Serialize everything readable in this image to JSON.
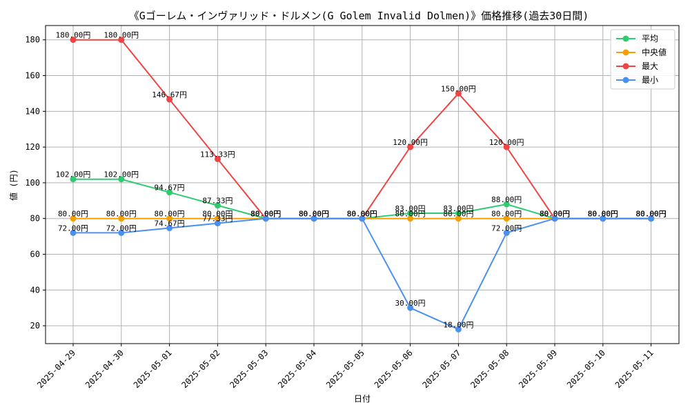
{
  "chart_data": {
    "type": "line",
    "title": "《Gゴーレム・インヴァリッド・ドルメン(G Golem Invalid Dolmen)》価格推移(過去30日間)",
    "xlabel": "日付",
    "ylabel": "値 (円)",
    "ylim": [
      10,
      188
    ],
    "yticks": [
      20,
      40,
      60,
      80,
      100,
      120,
      140,
      160,
      180
    ],
    "grid": true,
    "legend_position": "top-right",
    "x": [
      "2025-04-29",
      "2025-04-30",
      "2025-05-01",
      "2025-05-02",
      "2025-05-03",
      "2025-05-04",
      "2025-05-05",
      "2025-05-06",
      "2025-05-07",
      "2025-05-08",
      "2025-05-09",
      "2025-05-10",
      "2025-05-11"
    ],
    "series": [
      {
        "name": "平均",
        "color": "#2ecc71",
        "values": [
          102.0,
          102.0,
          94.67,
          87.33,
          80.0,
          80.0,
          80.0,
          83.0,
          83.0,
          88.0,
          80.0,
          80.0,
          80.0
        ]
      },
      {
        "name": "中央値",
        "color": "#f5a000",
        "values": [
          80.0,
          80.0,
          80.0,
          80.0,
          80.0,
          80.0,
          80.0,
          80.0,
          80.0,
          80.0,
          80.0,
          80.0,
          80.0
        ]
      },
      {
        "name": "最大",
        "color": "#ef4444",
        "values": [
          180.0,
          180.0,
          146.67,
          113.33,
          80.0,
          80.0,
          80.0,
          120.0,
          150.0,
          120.0,
          80.0,
          80.0,
          80.0
        ]
      },
      {
        "name": "最小",
        "color": "#4a90f0",
        "values": [
          72.0,
          72.0,
          74.67,
          77.33,
          80.0,
          80.0,
          80.0,
          30.0,
          18.0,
          72.0,
          80.0,
          80.0,
          80.0
        ]
      }
    ],
    "label_suffix": "円"
  }
}
